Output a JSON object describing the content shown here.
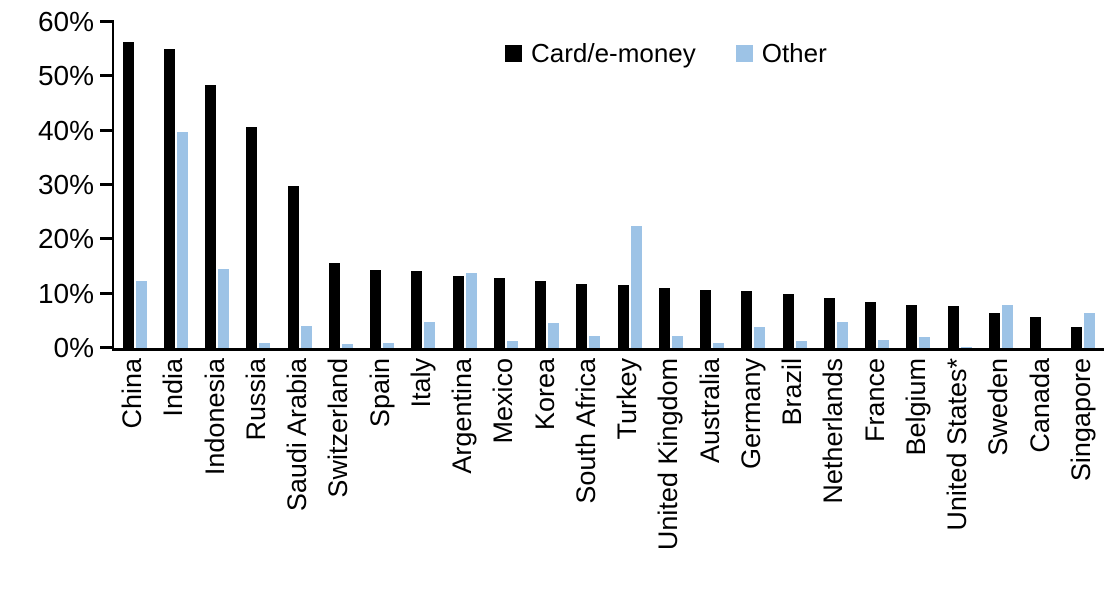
{
  "chart_data": {
    "type": "bar",
    "title": "",
    "xlabel": "",
    "ylabel": "",
    "ylim": [
      0,
      60
    ],
    "grid": false,
    "legend_position": "top-center",
    "y_ticks": [
      {
        "value": 0,
        "label": "0%"
      },
      {
        "value": 10,
        "label": "10%"
      },
      {
        "value": 20,
        "label": "20%"
      },
      {
        "value": 30,
        "label": "30%"
      },
      {
        "value": 40,
        "label": "40%"
      },
      {
        "value": 50,
        "label": "50%"
      },
      {
        "value": 60,
        "label": "60%"
      }
    ],
    "categories": [
      "China",
      "India",
      "Indonesia",
      "Russia",
      "Saudi Arabia",
      "Switzerland",
      "Spain",
      "Italy",
      "Argentina",
      "Mexico",
      "Korea",
      "South Africa",
      "Turkey",
      "United Kingdom",
      "Australia",
      "Germany",
      "Brazil",
      "Netherlands",
      "France",
      "Belgium",
      "United States*",
      "Sweden",
      "Canada",
      "Singapore"
    ],
    "series": [
      {
        "name": "Card/e-money",
        "color": "#000000",
        "values": [
          56.4,
          55.0,
          48.4,
          40.6,
          29.8,
          15.7,
          14.3,
          14.1,
          13.3,
          12.9,
          12.3,
          11.7,
          11.6,
          11.0,
          10.7,
          10.5,
          9.9,
          9.2,
          8.5,
          7.9,
          7.8,
          6.4,
          5.8,
          3.8
        ]
      },
      {
        "name": "Other",
        "color": "#9DC3E6",
        "values": [
          12.3,
          39.7,
          14.5,
          1.0,
          4.0,
          0.8,
          1.0,
          4.7,
          13.8,
          1.3,
          4.6,
          2.3,
          22.5,
          2.3,
          1.0,
          3.9,
          1.2,
          4.7,
          1.5,
          2.0,
          0.2,
          7.9,
          0.0,
          6.5
        ]
      }
    ]
  },
  "colors": {
    "axis": "#000000",
    "card_e_money": "#000000",
    "other": "#9DC3E6",
    "background": "#ffffff"
  }
}
